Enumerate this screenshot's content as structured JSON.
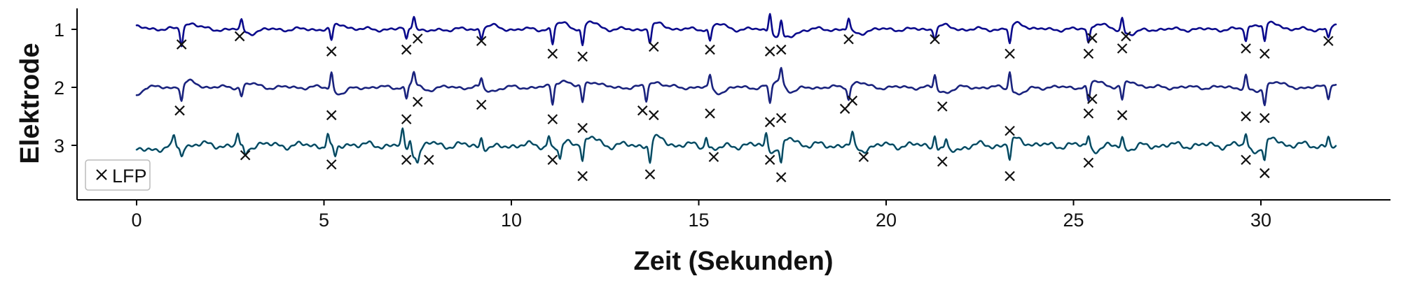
{
  "chart_data": {
    "type": "line",
    "xlabel": "Zeit (Sekunden)",
    "ylabel": "Elektrode",
    "xlim": [
      -1.5,
      33.5
    ],
    "x_ticks": [
      0,
      5,
      10,
      15,
      20,
      25,
      30
    ],
    "y_ticks": [
      "1",
      "2",
      "3"
    ],
    "duration": 32,
    "legend": {
      "position": "lower-left",
      "entries": [
        {
          "marker": "×",
          "label": "LFP"
        }
      ]
    },
    "grid": false,
    "series": [
      {
        "color": "#0a0a8c",
        "events": [
          {
            "t": 1.2,
            "a": -0.9
          },
          {
            "t": 2.8,
            "a": 0.5
          },
          {
            "t": 5.2,
            "a": -0.7
          },
          {
            "t": 7.2,
            "a": -0.6
          },
          {
            "t": 7.4,
            "a": 0.6
          },
          {
            "t": 9.2,
            "a": -0.5
          },
          {
            "t": 11.1,
            "a": -0.9
          },
          {
            "t": 11.9,
            "a": -1.0
          },
          {
            "t": 13.7,
            "a": -0.8
          },
          {
            "t": 15.3,
            "a": -0.7
          },
          {
            "t": 16.9,
            "a": 1.0
          },
          {
            "t": 17.2,
            "a": 0.8
          },
          {
            "t": 19.0,
            "a": 0.6
          },
          {
            "t": 21.3,
            "a": -0.5
          },
          {
            "t": 23.3,
            "a": -0.9
          },
          {
            "t": 25.4,
            "a": -0.8
          },
          {
            "t": 26.3,
            "a": 0.7
          },
          {
            "t": 29.6,
            "a": -0.7
          },
          {
            "t": 30.1,
            "a": -0.9
          },
          {
            "t": 31.8,
            "a": -0.5
          }
        ],
        "markers": [
          {
            "t": 1.2,
            "v": 0.26
          },
          {
            "t": 2.75,
            "v": 0.12
          },
          {
            "t": 5.2,
            "v": 0.38
          },
          {
            "t": 7.2,
            "v": 0.35
          },
          {
            "t": 7.5,
            "v": 0.16
          },
          {
            "t": 9.2,
            "v": 0.2
          },
          {
            "t": 11.1,
            "v": 0.42
          },
          {
            "t": 11.9,
            "v": 0.47
          },
          {
            "t": 13.8,
            "v": 0.3
          },
          {
            "t": 15.3,
            "v": 0.35
          },
          {
            "t": 16.9,
            "v": 0.38
          },
          {
            "t": 17.2,
            "v": 0.35
          },
          {
            "t": 19.0,
            "v": 0.17
          },
          {
            "t": 21.3,
            "v": 0.17
          },
          {
            "t": 23.3,
            "v": 0.42
          },
          {
            "t": 25.4,
            "v": 0.42
          },
          {
            "t": 25.5,
            "v": 0.15
          },
          {
            "t": 26.3,
            "v": 0.33
          },
          {
            "t": 26.4,
            "v": 0.12
          },
          {
            "t": 29.6,
            "v": 0.33
          },
          {
            "t": 30.1,
            "v": 0.42
          },
          {
            "t": 31.8,
            "v": 0.2
          }
        ]
      },
      {
        "color": "#1a237e",
        "events": [
          {
            "t": 1.2,
            "a": -0.8
          },
          {
            "t": 2.8,
            "a": -0.5
          },
          {
            "t": 5.2,
            "a": 0.9
          },
          {
            "t": 7.2,
            "a": -0.7
          },
          {
            "t": 7.4,
            "a": 0.6
          },
          {
            "t": 9.2,
            "a": 0.5
          },
          {
            "t": 11.1,
            "a": -1.0
          },
          {
            "t": 11.9,
            "a": -0.9
          },
          {
            "t": 13.6,
            "a": -0.8
          },
          {
            "t": 15.3,
            "a": 0.7
          },
          {
            "t": 16.9,
            "a": -1.0
          },
          {
            "t": 17.2,
            "a": 0.8
          },
          {
            "t": 19.0,
            "a": -0.7
          },
          {
            "t": 21.3,
            "a": 0.7
          },
          {
            "t": 23.3,
            "a": 1.0
          },
          {
            "t": 25.4,
            "a": -0.9
          },
          {
            "t": 26.3,
            "a": -0.8
          },
          {
            "t": 29.6,
            "a": 0.7
          },
          {
            "t": 30.1,
            "a": -0.9
          },
          {
            "t": 31.8,
            "a": -0.6
          }
        ],
        "markers": [
          {
            "t": 1.15,
            "v": 0.4
          },
          {
            "t": 5.2,
            "v": 0.48
          },
          {
            "t": 7.2,
            "v": 0.55
          },
          {
            "t": 7.5,
            "v": 0.25
          },
          {
            "t": 9.2,
            "v": 0.3
          },
          {
            "t": 11.1,
            "v": 0.55
          },
          {
            "t": 11.9,
            "v": 0.7
          },
          {
            "t": 13.5,
            "v": 0.4
          },
          {
            "t": 13.8,
            "v": 0.48
          },
          {
            "t": 15.3,
            "v": 0.45
          },
          {
            "t": 16.9,
            "v": 0.6
          },
          {
            "t": 17.2,
            "v": 0.53
          },
          {
            "t": 18.9,
            "v": 0.37
          },
          {
            "t": 19.1,
            "v": 0.23
          },
          {
            "t": 21.5,
            "v": 0.33
          },
          {
            "t": 23.3,
            "v": 0.75
          },
          {
            "t": 25.4,
            "v": 0.45
          },
          {
            "t": 25.5,
            "v": 0.2
          },
          {
            "t": 26.3,
            "v": 0.48
          },
          {
            "t": 29.6,
            "v": 0.5
          },
          {
            "t": 30.1,
            "v": 0.53
          }
        ]
      },
      {
        "color": "#0e6b8c",
        "events": [
          {
            "t": 1.0,
            "a": 0.5
          },
          {
            "t": 1.2,
            "a": -0.4
          },
          {
            "t": 2.7,
            "a": 0.6
          },
          {
            "t": 2.9,
            "a": -0.4
          },
          {
            "t": 5.1,
            "a": 0.7
          },
          {
            "t": 5.3,
            "a": -0.5
          },
          {
            "t": 7.1,
            "a": 0.8
          },
          {
            "t": 7.3,
            "a": 0.6
          },
          {
            "t": 7.5,
            "a": -0.5
          },
          {
            "t": 9.2,
            "a": 0.5
          },
          {
            "t": 11.0,
            "a": 0.6
          },
          {
            "t": 11.3,
            "a": -0.7
          },
          {
            "t": 11.9,
            "a": -1.0
          },
          {
            "t": 13.7,
            "a": -1.0
          },
          {
            "t": 15.2,
            "a": 0.6
          },
          {
            "t": 16.8,
            "a": 0.7
          },
          {
            "t": 17.2,
            "a": -1.0
          },
          {
            "t": 19.1,
            "a": 0.6
          },
          {
            "t": 21.3,
            "a": 0.7
          },
          {
            "t": 21.6,
            "a": 0.5
          },
          {
            "t": 23.3,
            "a": -0.9
          },
          {
            "t": 25.4,
            "a": 0.6
          },
          {
            "t": 26.3,
            "a": 0.5
          },
          {
            "t": 29.6,
            "a": 0.7
          },
          {
            "t": 30.1,
            "a": -0.9
          },
          {
            "t": 31.8,
            "a": 0.5
          }
        ],
        "markers": [
          {
            "t": 2.9,
            "v": 0.17
          },
          {
            "t": 5.2,
            "v": 0.33
          },
          {
            "t": 7.2,
            "v": 0.25
          },
          {
            "t": 7.8,
            "v": 0.25
          },
          {
            "t": 11.1,
            "v": 0.25
          },
          {
            "t": 11.9,
            "v": 0.53
          },
          {
            "t": 13.7,
            "v": 0.5
          },
          {
            "t": 15.4,
            "v": 0.2
          },
          {
            "t": 16.9,
            "v": 0.25
          },
          {
            "t": 17.2,
            "v": 0.55
          },
          {
            "t": 19.4,
            "v": 0.2
          },
          {
            "t": 21.5,
            "v": 0.28
          },
          {
            "t": 23.3,
            "v": 0.53
          },
          {
            "t": 25.4,
            "v": 0.3
          },
          {
            "t": 29.6,
            "v": 0.25
          },
          {
            "t": 30.1,
            "v": 0.48
          }
        ]
      }
    ]
  }
}
